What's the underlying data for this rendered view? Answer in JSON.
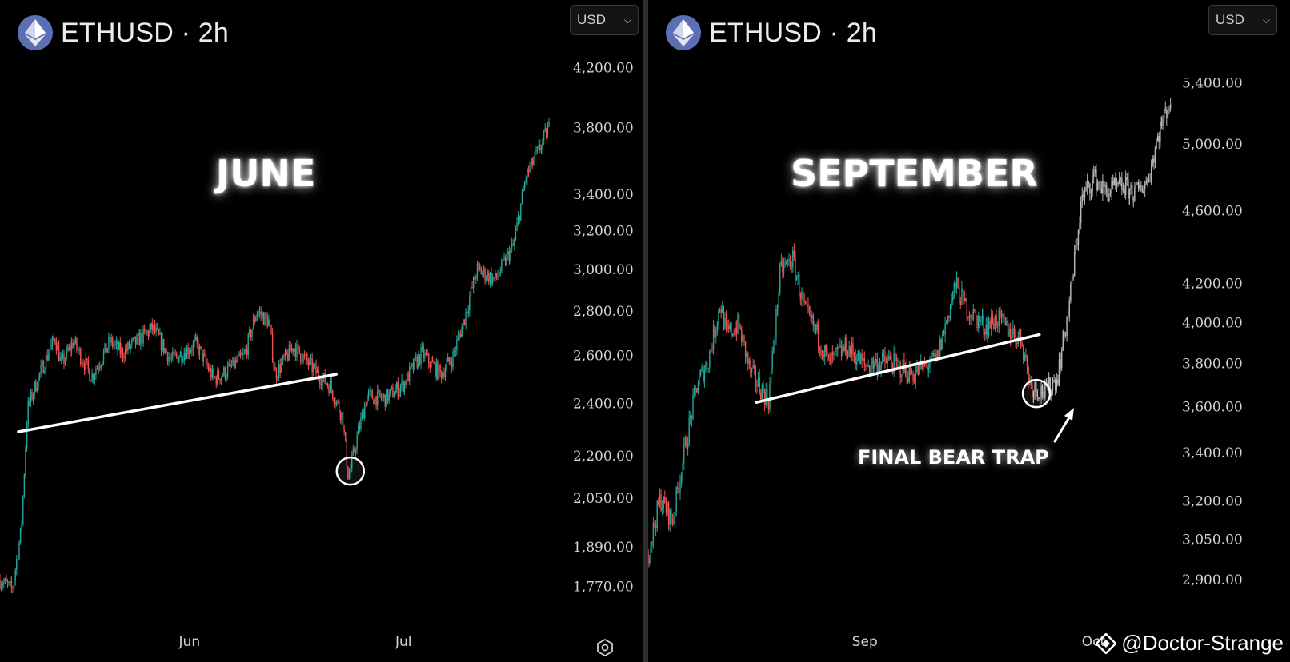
{
  "colors": {
    "up": "#26a69a",
    "down": "#ef5350",
    "neutral": "#b8b8b8",
    "line": "#ffffff",
    "bg": "#000000"
  },
  "chart_data": [
    {
      "type": "candlestick",
      "symbol": "ETHUSD · 2h",
      "currency": "USD",
      "label": "JUNE",
      "y_scale": "log",
      "ylim": [
        1720,
        4350
      ],
      "y_ticks": [
        "4,200.00",
        "3,800.00",
        "3,400.00",
        "3,200.00",
        "3,000.00",
        "2,800.00",
        "2,600.00",
        "2,400.00",
        "2,200.00",
        "2,050.00",
        "1,890.00",
        "1,770.00"
      ],
      "y_tick_values": [
        4200,
        3800,
        3400,
        3200,
        3000,
        2800,
        2600,
        2400,
        2200,
        2050,
        1890,
        1770
      ],
      "x_ticks": [
        {
          "label": "Jun",
          "pos": 0.31
        },
        {
          "label": "Jul",
          "pos": 0.66
        }
      ],
      "price_path": [
        [
          0,
          1790
        ],
        [
          0.02,
          1760
        ],
        [
          0.035,
          1950
        ],
        [
          0.045,
          2380
        ],
        [
          0.06,
          2490
        ],
        [
          0.09,
          2680
        ],
        [
          0.1,
          2560
        ],
        [
          0.12,
          2660
        ],
        [
          0.15,
          2510
        ],
        [
          0.18,
          2660
        ],
        [
          0.2,
          2610
        ],
        [
          0.25,
          2720
        ],
        [
          0.28,
          2580
        ],
        [
          0.32,
          2650
        ],
        [
          0.35,
          2500
        ],
        [
          0.37,
          2530
        ],
        [
          0.4,
          2600
        ],
        [
          0.42,
          2800
        ],
        [
          0.44,
          2750
        ],
        [
          0.45,
          2520
        ],
        [
          0.48,
          2640
        ],
        [
          0.52,
          2520
        ],
        [
          0.54,
          2470
        ],
        [
          0.56,
          2350
        ],
        [
          0.57,
          2120
        ],
        [
          0.585,
          2280
        ],
        [
          0.6,
          2430
        ],
        [
          0.63,
          2420
        ],
        [
          0.66,
          2480
        ],
        [
          0.69,
          2610
        ],
        [
          0.72,
          2520
        ],
        [
          0.74,
          2590
        ],
        [
          0.76,
          2770
        ],
        [
          0.78,
          3000
        ],
        [
          0.81,
          2950
        ],
        [
          0.84,
          3120
        ],
        [
          0.86,
          3500
        ],
        [
          0.88,
          3650
        ],
        [
          0.9,
          3820
        ]
      ],
      "trendline": [
        [
          0.03,
          2290
        ],
        [
          0.55,
          2520
        ]
      ],
      "circle": {
        "pos": 0.573,
        "value": 2145
      }
    },
    {
      "type": "candlestick",
      "symbol": "ETHUSD · 2h",
      "currency": "USD",
      "label": "SEPTEMBER",
      "annotation": "FINAL BEAR TRAP",
      "y_scale": "log",
      "ylim": [
        2800,
        5650
      ],
      "y_ticks": [
        "5,400.00",
        "5,000.00",
        "4,600.00",
        "4,200.00",
        "4,000.00",
        "3,800.00",
        "3,600.00",
        "3,400.00",
        "3,200.00",
        "3,050.00",
        "2,900.00"
      ],
      "y_tick_values": [
        5400,
        5000,
        4600,
        4200,
        4000,
        3800,
        3600,
        3400,
        3200,
        3050,
        2900
      ],
      "x_ticks": [
        {
          "label": "Sep",
          "pos": 0.36
        },
        {
          "label": "Oct",
          "pos": 0.74
        }
      ],
      "price_path": [
        [
          0,
          3000
        ],
        [
          0.02,
          3210
        ],
        [
          0.04,
          3120
        ],
        [
          0.06,
          3400
        ],
        [
          0.08,
          3690
        ],
        [
          0.1,
          3820
        ],
        [
          0.12,
          4100
        ],
        [
          0.13,
          3940
        ],
        [
          0.15,
          3990
        ],
        [
          0.17,
          3760
        ],
        [
          0.2,
          3630
        ],
        [
          0.22,
          4270
        ],
        [
          0.24,
          4330
        ],
        [
          0.26,
          4060
        ],
        [
          0.28,
          3950
        ],
        [
          0.3,
          3800
        ],
        [
          0.33,
          3880
        ],
        [
          0.36,
          3790
        ],
        [
          0.4,
          3810
        ],
        [
          0.44,
          3750
        ],
        [
          0.48,
          3820
        ],
        [
          0.51,
          4190
        ],
        [
          0.53,
          4070
        ],
        [
          0.56,
          3980
        ],
        [
          0.58,
          4020
        ],
        [
          0.6,
          3960
        ],
        [
          0.62,
          3920
        ],
        [
          0.635,
          3700
        ],
        [
          0.66,
          3660
        ],
        [
          0.68,
          3740
        ],
        [
          0.7,
          4100
        ],
        [
          0.72,
          4660
        ],
        [
          0.74,
          4800
        ],
        [
          0.76,
          4710
        ],
        [
          0.79,
          4740
        ],
        [
          0.81,
          4700
        ],
        [
          0.83,
          4780
        ],
        [
          0.85,
          5100
        ],
        [
          0.87,
          5310
        ]
      ],
      "trendline": [
        [
          0.18,
          3620
        ],
        [
          0.65,
          3940
        ]
      ],
      "circle": {
        "pos": 0.645,
        "value": 3660
      }
    }
  ],
  "watermark": "@Doctor-Strange"
}
